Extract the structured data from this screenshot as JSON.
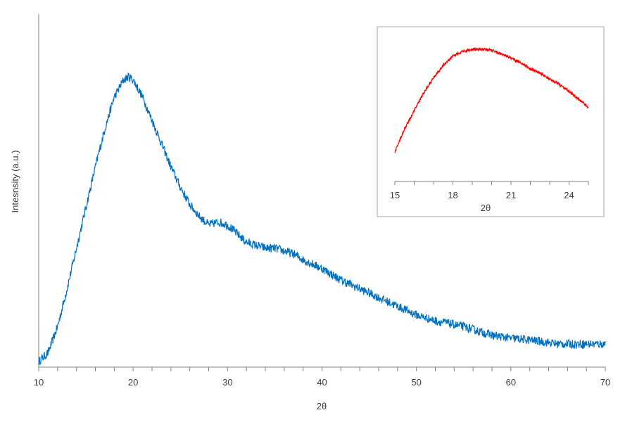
{
  "chart_data": [
    {
      "type": "line",
      "xlabel": "2θ",
      "ylabel": "Intesnsity (a.u.)",
      "xlim": [
        10,
        70
      ],
      "ylim": [
        0,
        1
      ],
      "y_tick_labels": false,
      "x_ticks": [
        10,
        20,
        30,
        40,
        50,
        60,
        70
      ],
      "x_tick_labels": [
        "10",
        "20",
        "30",
        "40",
        "50",
        "60",
        "70"
      ],
      "color": "#0070C0",
      "series": [
        {
          "x": [
            10,
            11,
            12,
            13,
            14,
            15,
            16,
            17,
            18,
            19,
            19.5,
            20,
            21,
            22,
            23,
            24,
            25,
            26,
            27,
            28,
            29,
            30,
            31,
            32,
            33,
            34,
            35,
            36,
            37,
            38,
            40,
            42,
            44,
            46,
            48,
            50,
            52,
            55,
            58,
            60,
            63,
            65,
            68,
            70
          ],
          "y": [
            0.01,
            0.04,
            0.13,
            0.26,
            0.4,
            0.54,
            0.68,
            0.81,
            0.92,
            0.98,
            0.99,
            0.98,
            0.92,
            0.84,
            0.76,
            0.68,
            0.61,
            0.55,
            0.51,
            0.48,
            0.49,
            0.48,
            0.45,
            0.42,
            0.41,
            0.4,
            0.4,
            0.39,
            0.38,
            0.36,
            0.33,
            0.29,
            0.26,
            0.23,
            0.2,
            0.17,
            0.15,
            0.13,
            0.1,
            0.09,
            0.08,
            0.07,
            0.07,
            0.07
          ]
        }
      ]
    },
    {
      "type": "line",
      "xlabel": "2θ",
      "ylabel": "",
      "xlim": [
        15,
        25
      ],
      "ylim": [
        0,
        1
      ],
      "y_tick_labels": false,
      "x_ticks": [
        15,
        18,
        21,
        24
      ],
      "x_tick_labels": [
        "15",
        "18",
        "21",
        "24"
      ],
      "color": "#FF0000",
      "series": [
        {
          "x": [
            15,
            15.5,
            16,
            16.5,
            17,
            17.5,
            18,
            18.5,
            19,
            19.5,
            20,
            20.5,
            21,
            21.5,
            22,
            22.5,
            23,
            23.5,
            24,
            24.5,
            25
          ],
          "y": [
            0.1,
            0.3,
            0.46,
            0.62,
            0.75,
            0.86,
            0.94,
            0.98,
            1.0,
            1.0,
            0.99,
            0.96,
            0.92,
            0.88,
            0.83,
            0.79,
            0.74,
            0.69,
            0.63,
            0.56,
            0.49
          ]
        }
      ]
    }
  ]
}
